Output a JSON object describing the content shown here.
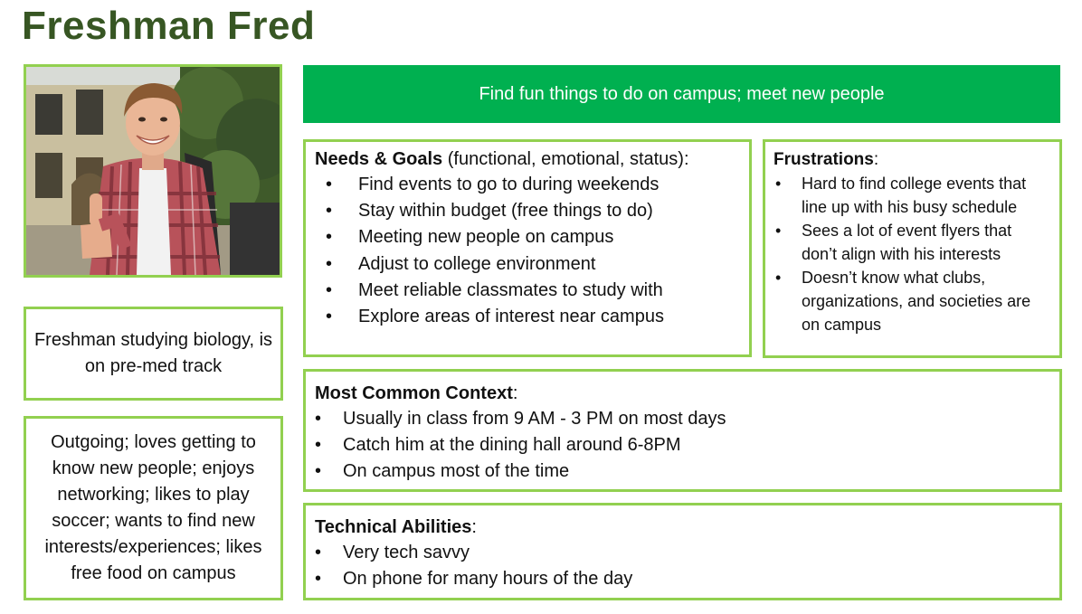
{
  "persona": {
    "name": "Freshman Fred",
    "photo_icon": "student-portrait-photo",
    "tagline": "Find fun things to do on campus; meet new people",
    "description": "Freshman studying biology, is on pre-med track",
    "personality": "Outgoing; loves getting to know new people; enjoys networking; likes to play soccer; wants to find new interests/experiences; likes free food on campus"
  },
  "needs": {
    "heading_bold": "Needs & Goals",
    "heading_rest": " (functional, emotional, status):",
    "items": [
      "Find events to go to during weekends",
      "Stay within budget (free things to do)",
      "Meeting new people on campus",
      "Adjust to college environment",
      "Meet reliable classmates to study with",
      "Explore areas of interest near campus"
    ]
  },
  "frustrations": {
    "heading_bold": "Frustrations",
    "heading_rest": ":",
    "items": [
      "Hard to find college events that line up with his busy schedule",
      "Sees a lot of event flyers that don’t align with his interests",
      "Doesn’t know what clubs, organizations, and societies are on campus"
    ]
  },
  "context": {
    "heading_bold": "Most Common Context",
    "heading_rest": ":",
    "items": [
      "Usually in class from 9 AM - 3 PM on most days",
      "Catch him at the dining hall around 6-8PM",
      "On campus most of the time"
    ]
  },
  "technical": {
    "heading_bold": "Technical Abilities",
    "heading_rest": ":",
    "items": [
      "Very tech savvy",
      "On phone for many hours of the day"
    ]
  },
  "colors": {
    "title": "#375623",
    "border": "#92d050",
    "banner": "#00b050"
  }
}
